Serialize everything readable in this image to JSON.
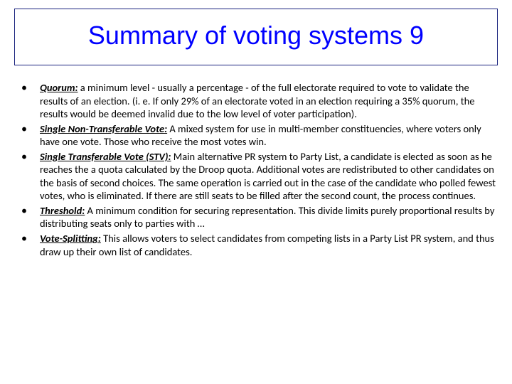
{
  "title": "Summary of voting systems 9",
  "title_color": "#0000ff",
  "title_fontsize": 36,
  "border_color": "#1a237e",
  "body_fontsize": 14.5,
  "text_color": "#000000",
  "bullets": [
    {
      "term": "Quorum:",
      "text": " a minimum level - usually a percentage - of the full electorate required to vote to validate the results of an election. (i. e. If only 29% of an electorate voted in an election requiring a 35% quorum, the results would be deemed invalid due to the low level of voter participation)."
    },
    {
      "term": "Single Non-Transferable Vote:",
      "text": " A mixed system for use in multi-member constituencies, where voters only have one vote. Those who receive the most votes win."
    },
    {
      "term": "Single Transferable Vote (STV):",
      "text": " Main alternative PR system to Party List, a candidate is elected as soon as he reaches the a quota calculated by the Droop quota. Additional votes are redistributed to other candidates on the basis of second choices. The same operation is carried out in the case of the candidate who polled fewest votes, who is eliminated. If there are still seats to be filled after the second count, the process continues."
    },
    {
      "term": "Threshold:",
      "text": " A minimum condition for securing representation. This divide limits purely proportional results by distributing seats only to parties with …"
    },
    {
      "term": "Vote-Splitting:",
      "text": " This allows voters to select candidates from competing lists in a Party List PR system, and thus draw up their own list of candidates."
    }
  ]
}
